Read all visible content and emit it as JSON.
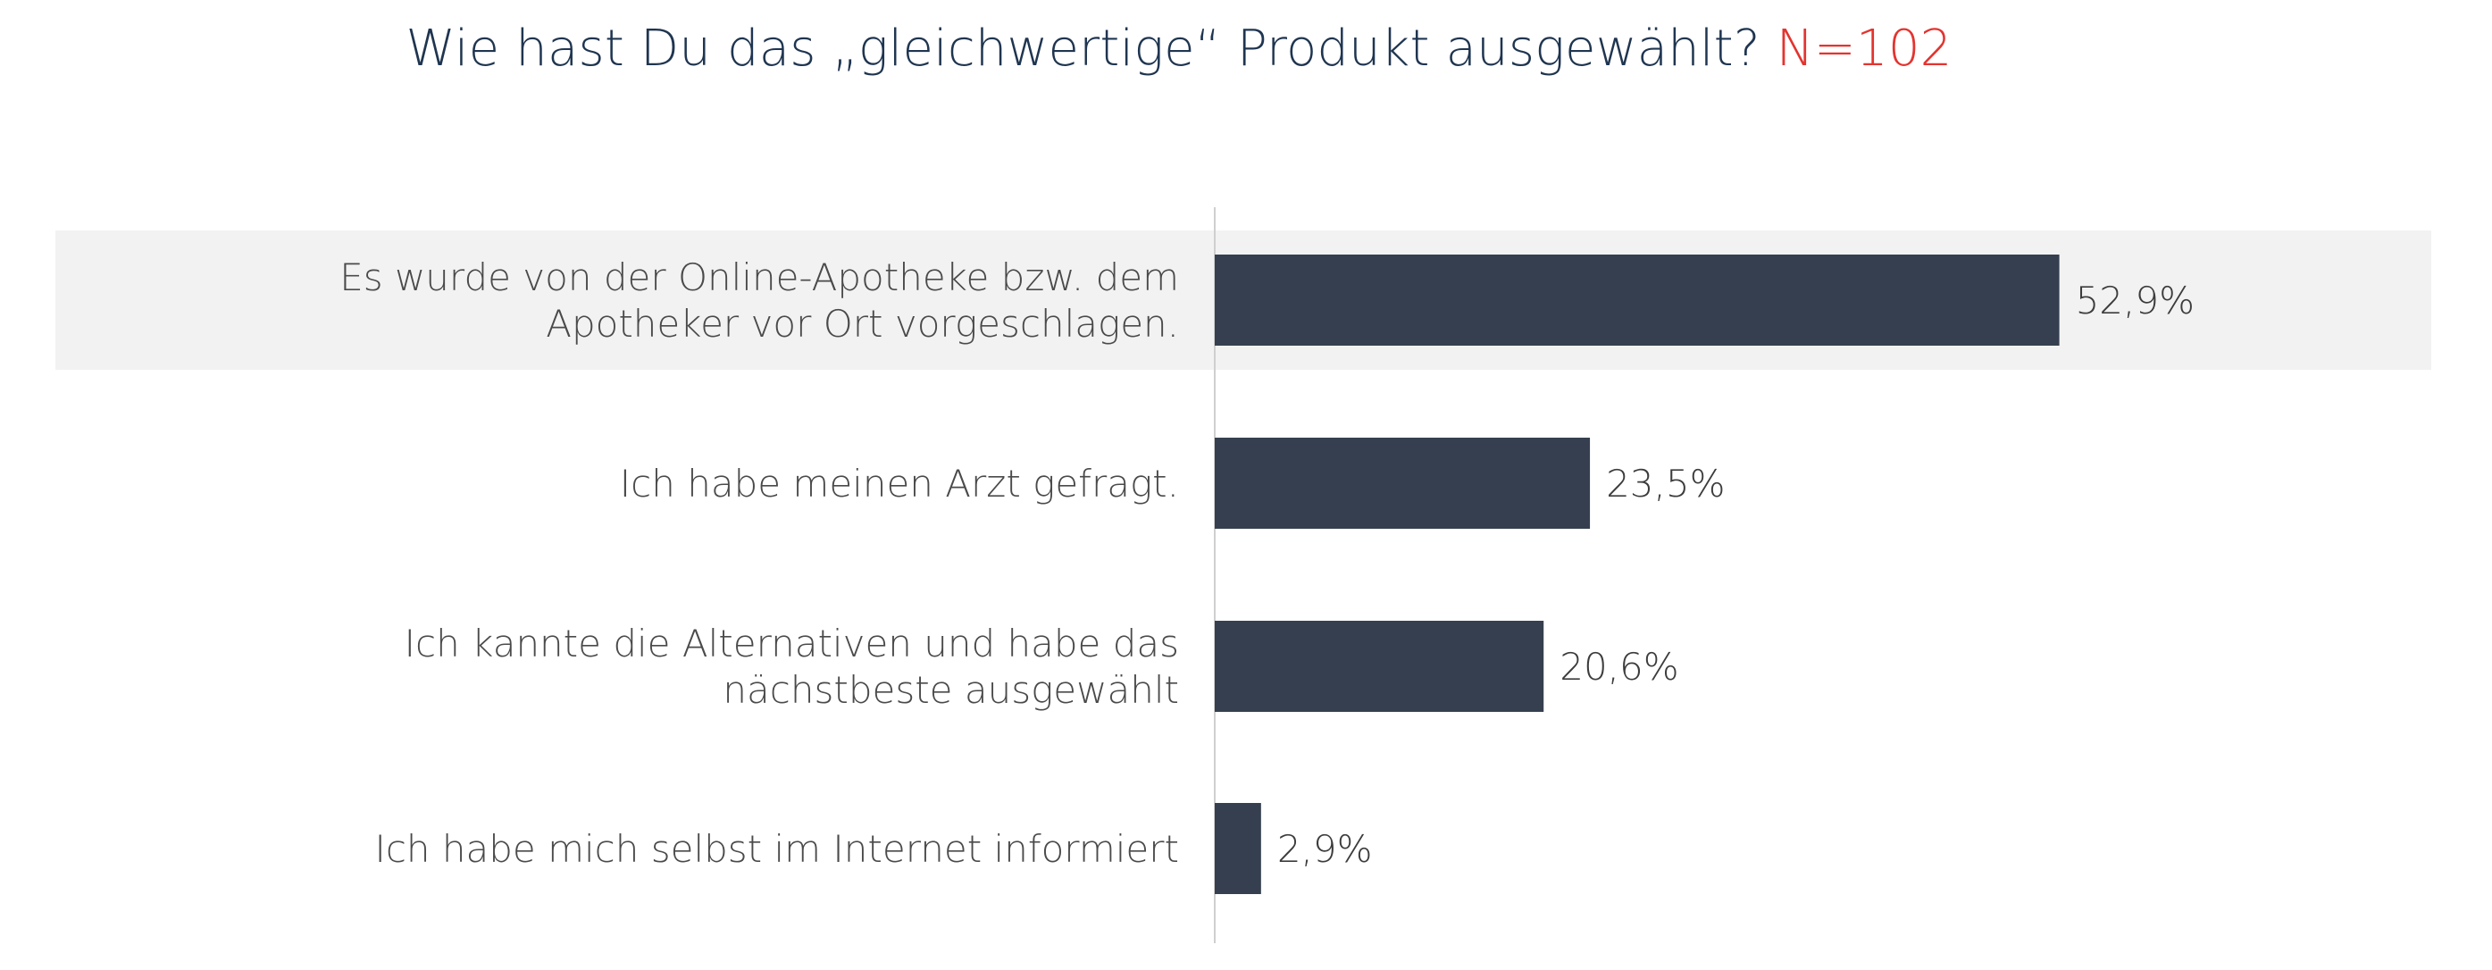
{
  "chart_data": {
    "type": "bar",
    "orientation": "horizontal",
    "title": "Wie hast Du das „gleichwertige“ Produkt ausgewählt?",
    "sample_size_label": "N=102",
    "categories": [
      [
        "Es wurde von der Online-Apotheke bzw. dem",
        "Apotheker vor Ort vorgeschlagen."
      ],
      [
        "Ich habe meinen Arzt gefragt."
      ],
      [
        "Ich kannte die Alternativen und habe das",
        "nächstbeste ausgewählt"
      ],
      [
        "Ich habe mich selbst im Internet informiert"
      ]
    ],
    "values": [
      52.9,
      23.5,
      20.6,
      2.9
    ],
    "value_labels": [
      "52,9%",
      "23,5%",
      "20,6%",
      "2,9%"
    ],
    "xlim": [
      0,
      80
    ],
    "highlighted_category_index": 0,
    "grid": false,
    "legend": "none"
  },
  "colors": {
    "bar": "#353f4f",
    "title": "#1f3550",
    "n_label": "#e3342f",
    "highlight_band": "#f2f2f2",
    "axis_line": "#cfcfcf"
  }
}
